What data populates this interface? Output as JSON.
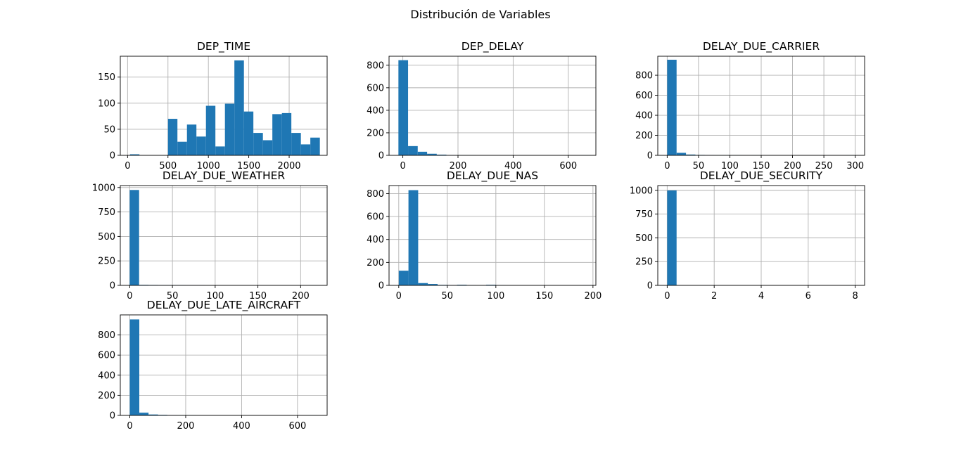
{
  "figure": {
    "title": "Distribución de Variables"
  },
  "colors": {
    "bar": "#1f77b4",
    "grid": "#b0b0b0",
    "spine": "#000000"
  },
  "chart_data": [
    {
      "type": "bar",
      "title": "DEP_TIME",
      "xlim": [
        -90,
        2470
      ],
      "ylim": [
        0,
        190
      ],
      "xticks": [
        0,
        500,
        1000,
        1500,
        2000
      ],
      "yticks": [
        0,
        50,
        100,
        150
      ],
      "grid": true,
      "bins": [
        [
          30,
          147,
          2
        ],
        [
          147,
          265,
          0
        ],
        [
          265,
          382,
          0
        ],
        [
          382,
          500,
          0
        ],
        [
          500,
          617,
          70
        ],
        [
          617,
          735,
          26
        ],
        [
          735,
          852,
          59
        ],
        [
          852,
          970,
          36
        ],
        [
          970,
          1087,
          95
        ],
        [
          1087,
          1205,
          17
        ],
        [
          1205,
          1322,
          99
        ],
        [
          1322,
          1440,
          182
        ],
        [
          1440,
          1557,
          84
        ],
        [
          1557,
          1675,
          43
        ],
        [
          1675,
          1792,
          29
        ],
        [
          1792,
          1910,
          79
        ],
        [
          1910,
          2027,
          81
        ],
        [
          2027,
          2145,
          43
        ],
        [
          2145,
          2262,
          21
        ],
        [
          2262,
          2380,
          34
        ]
      ]
    },
    {
      "type": "bar",
      "title": "DEP_DELAY",
      "xlim": [
        -50,
        700
      ],
      "ylim": [
        0,
        880
      ],
      "xticks": [
        0,
        200,
        400,
        600
      ],
      "yticks": [
        0,
        200,
        400,
        600,
        800
      ],
      "grid": true,
      "bins": [
        [
          -16,
          19,
          845
        ],
        [
          19,
          54,
          82
        ],
        [
          54,
          88,
          32
        ],
        [
          88,
          123,
          14
        ],
        [
          123,
          158,
          6
        ],
        [
          158,
          193,
          2
        ],
        [
          193,
          228,
          1
        ],
        [
          228,
          263,
          1
        ],
        [
          263,
          298,
          0
        ],
        [
          298,
          332,
          0
        ],
        [
          332,
          367,
          0
        ],
        [
          367,
          402,
          0
        ],
        [
          402,
          437,
          0
        ],
        [
          437,
          472,
          0
        ],
        [
          472,
          507,
          0
        ],
        [
          507,
          542,
          0
        ],
        [
          542,
          576,
          0
        ],
        [
          576,
          611,
          0
        ],
        [
          611,
          646,
          0
        ],
        [
          646,
          681,
          1
        ]
      ]
    },
    {
      "type": "bar",
      "title": "DELAY_DUE_CARRIER",
      "xlim": [
        -15,
        315
      ],
      "ylim": [
        0,
        990
      ],
      "xticks": [
        0,
        50,
        100,
        150,
        200,
        250,
        300
      ],
      "yticks": [
        0,
        200,
        400,
        600,
        800
      ],
      "grid": true,
      "bins": [
        [
          0,
          15,
          955
        ],
        [
          15,
          30,
          25
        ],
        [
          30,
          45,
          8
        ],
        [
          45,
          60,
          4
        ],
        [
          60,
          75,
          2
        ],
        [
          75,
          90,
          1
        ],
        [
          90,
          105,
          1
        ],
        [
          105,
          120,
          1
        ],
        [
          120,
          135,
          0
        ],
        [
          135,
          150,
          1
        ],
        [
          150,
          165,
          0
        ],
        [
          165,
          180,
          0
        ],
        [
          180,
          195,
          0
        ],
        [
          195,
          210,
          0
        ],
        [
          210,
          225,
          0
        ],
        [
          225,
          240,
          0
        ],
        [
          240,
          255,
          0
        ],
        [
          255,
          270,
          0
        ],
        [
          270,
          285,
          0
        ],
        [
          285,
          300,
          1
        ]
      ]
    },
    {
      "type": "bar",
      "title": "DELAY_DUE_WEATHER",
      "xlim": [
        -11,
        231
      ],
      "ylim": [
        0,
        1020
      ],
      "xticks": [
        0,
        50,
        100,
        150,
        200
      ],
      "yticks": [
        0,
        250,
        500,
        750,
        1000
      ],
      "grid": true,
      "bins": [
        [
          0,
          11,
          975
        ],
        [
          11,
          22,
          5
        ],
        [
          22,
          33,
          4
        ],
        [
          33,
          44,
          3
        ],
        [
          44,
          55,
          3
        ],
        [
          55,
          66,
          3
        ],
        [
          66,
          77,
          2
        ],
        [
          77,
          88,
          2
        ],
        [
          88,
          99,
          0
        ],
        [
          99,
          110,
          0
        ],
        [
          110,
          121,
          0
        ],
        [
          121,
          132,
          0
        ],
        [
          132,
          143,
          0
        ],
        [
          143,
          154,
          0
        ],
        [
          154,
          165,
          0
        ],
        [
          165,
          176,
          0
        ],
        [
          176,
          187,
          0
        ],
        [
          187,
          198,
          0
        ],
        [
          198,
          209,
          0
        ],
        [
          209,
          220,
          1
        ]
      ]
    },
    {
      "type": "bar",
      "title": "DELAY_DUE_NAS",
      "xlim": [
        -10,
        203
      ],
      "ylim": [
        0,
        870
      ],
      "xticks": [
        0,
        50,
        100,
        150,
        200
      ],
      "yticks": [
        0,
        200,
        400,
        600,
        800
      ],
      "grid": true,
      "bins": [
        [
          0,
          10,
          128
        ],
        [
          10,
          20,
          830
        ],
        [
          20,
          30,
          20
        ],
        [
          30,
          40,
          12
        ],
        [
          40,
          50,
          4
        ],
        [
          50,
          60,
          2
        ],
        [
          60,
          70,
          5
        ],
        [
          70,
          80,
          1
        ],
        [
          80,
          90,
          0
        ],
        [
          90,
          100,
          5
        ],
        [
          100,
          110,
          1
        ],
        [
          110,
          120,
          0
        ],
        [
          120,
          130,
          0
        ],
        [
          130,
          140,
          0
        ],
        [
          140,
          150,
          0
        ],
        [
          150,
          160,
          0
        ],
        [
          160,
          170,
          0
        ],
        [
          170,
          180,
          0
        ],
        [
          180,
          190,
          0
        ],
        [
          190,
          200,
          1
        ]
      ]
    },
    {
      "type": "bar",
      "title": "DELAY_DUE_SECURITY",
      "xlim": [
        -0.4,
        8.4
      ],
      "ylim": [
        0,
        1050
      ],
      "xticks": [
        0,
        2,
        4,
        6,
        8
      ],
      "yticks": [
        0,
        250,
        500,
        750,
        1000
      ],
      "grid": true,
      "bins": [
        [
          0,
          0.4,
          999
        ],
        [
          0.4,
          0.8,
          0
        ],
        [
          0.8,
          1.2,
          0
        ],
        [
          1.2,
          1.6,
          0
        ],
        [
          1.6,
          2,
          0
        ],
        [
          2,
          2.4,
          0
        ],
        [
          2.4,
          2.8,
          0
        ],
        [
          2.8,
          3.2,
          0
        ],
        [
          3.2,
          3.6,
          0
        ],
        [
          3.6,
          4,
          0
        ],
        [
          4,
          4.4,
          0
        ],
        [
          4.4,
          4.8,
          0
        ],
        [
          4.8,
          5.2,
          0
        ],
        [
          5.2,
          5.6,
          0
        ],
        [
          5.6,
          6,
          0
        ],
        [
          6,
          6.4,
          0
        ],
        [
          6.4,
          6.8,
          0
        ],
        [
          6.8,
          7.2,
          0
        ],
        [
          7.2,
          7.6,
          0
        ],
        [
          7.6,
          8,
          1
        ]
      ]
    },
    {
      "type": "bar",
      "title": "DELAY_DUE_LATE_AIRCRAFT",
      "xlim": [
        -34,
        706
      ],
      "ylim": [
        0,
        1000
      ],
      "xticks": [
        0,
        200,
        400,
        600
      ],
      "yticks": [
        0,
        200,
        400,
        600,
        800
      ],
      "grid": true,
      "bins": [
        [
          0,
          34,
          955
        ],
        [
          34,
          67,
          27
        ],
        [
          67,
          101,
          9
        ],
        [
          101,
          134,
          5
        ],
        [
          134,
          168,
          2
        ],
        [
          168,
          202,
          1
        ],
        [
          202,
          235,
          1
        ],
        [
          235,
          269,
          0
        ],
        [
          269,
          302,
          0
        ],
        [
          302,
          336,
          0
        ],
        [
          336,
          370,
          0
        ],
        [
          370,
          403,
          0
        ],
        [
          403,
          437,
          0
        ],
        [
          437,
          470,
          0
        ],
        [
          470,
          504,
          0
        ],
        [
          504,
          538,
          0
        ],
        [
          538,
          571,
          0
        ],
        [
          571,
          605,
          0
        ],
        [
          605,
          638,
          0
        ],
        [
          638,
          672,
          1
        ]
      ]
    }
  ]
}
